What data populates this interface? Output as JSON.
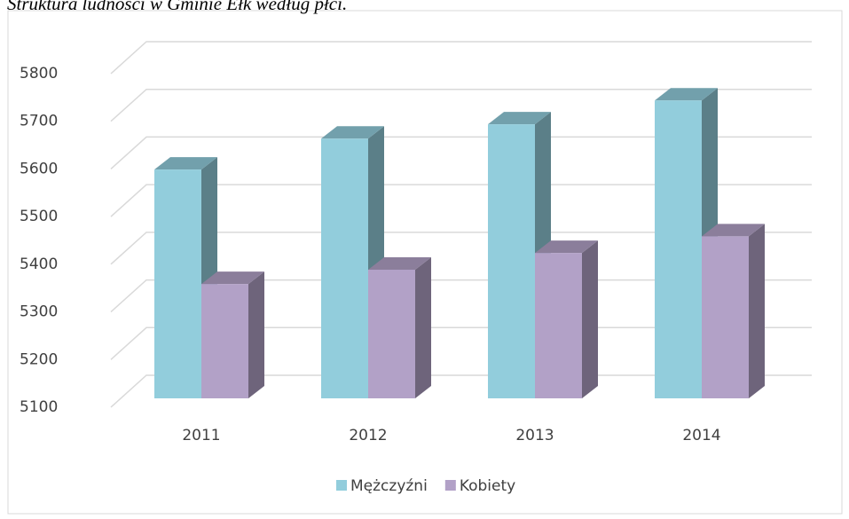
{
  "chart_data": {
    "type": "bar3d",
    "title": "Struktura ludności w Gminie Ełk według płci.",
    "categories": [
      "2011",
      "2012",
      "2013",
      "2014"
    ],
    "series": [
      {
        "name": "Mężczyźni",
        "color": "#92cddc",
        "values": [
          5580,
          5645,
          5675,
          5725
        ]
      },
      {
        "name": "Kobiety",
        "color": "#b2a1c7",
        "values": [
          5340,
          5370,
          5405,
          5440
        ]
      }
    ],
    "ylim": [
      5100,
      5800
    ],
    "yticks": [
      5100,
      5200,
      5300,
      5400,
      5500,
      5600,
      5700,
      5800
    ],
    "grid": true,
    "legend": "bottom"
  }
}
